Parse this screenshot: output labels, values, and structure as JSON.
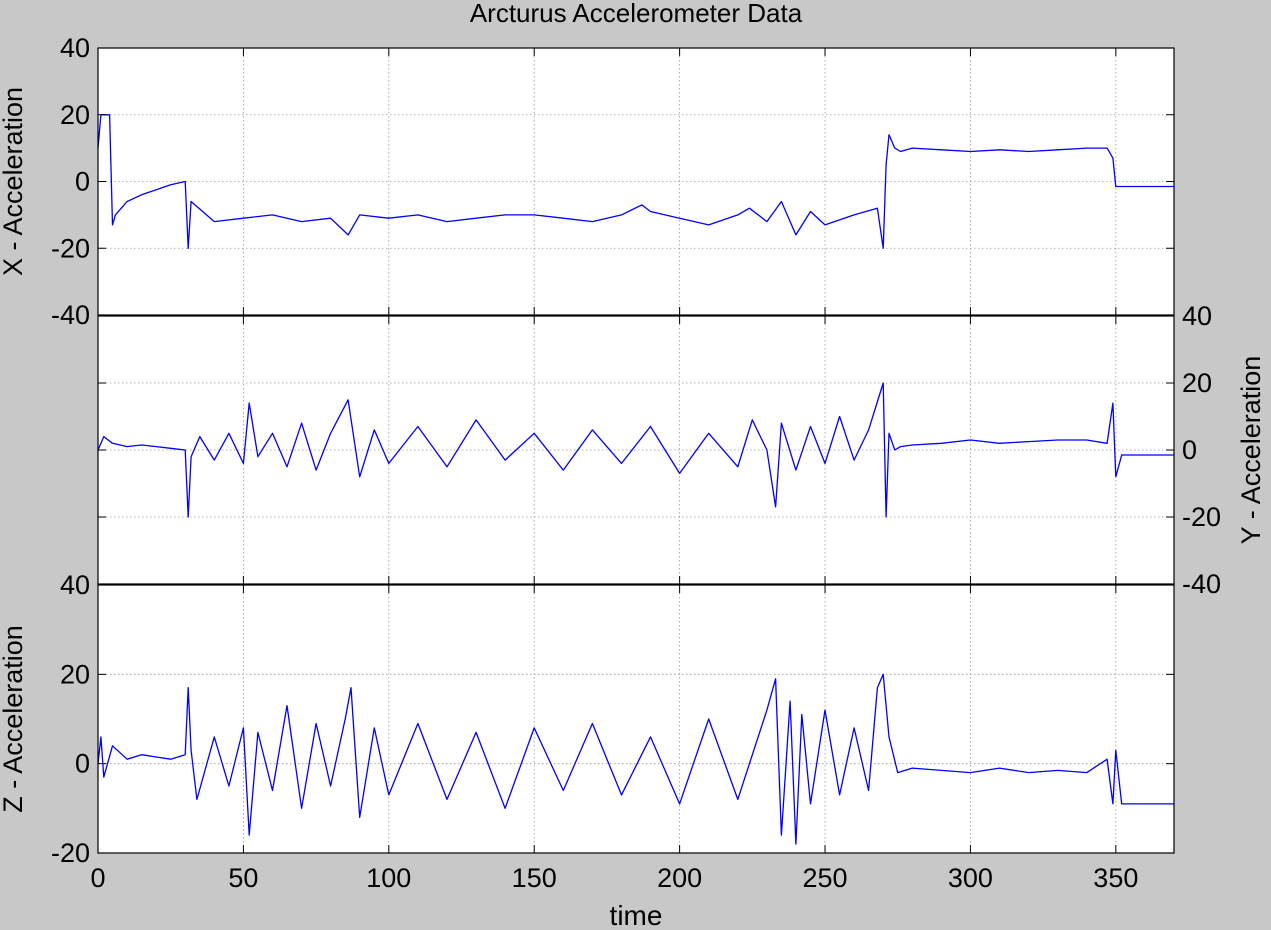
{
  "figure": {
    "title": "Arcturus Accelerometer Data",
    "xlabel": "time",
    "background": "#c8c8c8",
    "plot_background": "#ffffff",
    "line_color": "#0000ff",
    "grid_color": "#9a9a9a"
  },
  "chart_data": [
    {
      "type": "line",
      "title": "Arcturus Accelerometer Data",
      "xlabel": "",
      "ylabel": "X - Acceleration",
      "ylabel_side": "left",
      "xlim": [
        0,
        370
      ],
      "ylim": [
        -40,
        40
      ],
      "xticks": [
        0,
        50,
        100,
        150,
        200,
        250,
        300,
        350
      ],
      "yticks": [
        -40,
        -20,
        0,
        20,
        40
      ],
      "ytick_labels": [
        "-40",
        "-20",
        "0",
        "20",
        "40"
      ],
      "grid": true,
      "x": [
        0,
        1,
        4,
        5,
        6,
        8,
        10,
        15,
        20,
        25,
        30,
        31,
        32,
        40,
        50,
        60,
        70,
        80,
        86,
        90,
        100,
        110,
        120,
        130,
        140,
        150,
        160,
        170,
        180,
        187,
        190,
        200,
        210,
        220,
        224,
        230,
        235,
        240,
        245,
        250,
        260,
        268,
        270,
        271,
        272,
        274,
        276,
        280,
        290,
        300,
        310,
        320,
        330,
        340,
        347,
        349,
        350,
        352,
        360,
        370
      ],
      "series": [
        {
          "values": [
            10,
            20,
            20,
            -13,
            -10,
            -8,
            -6,
            -4,
            -2.5,
            -1,
            0,
            -20,
            -6,
            -12,
            -11,
            -10,
            -12,
            -11,
            -16,
            -10,
            -11,
            -10,
            -12,
            -11,
            -10,
            -10,
            -11,
            -12,
            -10,
            -7,
            -9,
            -11,
            -13,
            -10,
            -8,
            -12,
            -6,
            -16,
            -9,
            -13,
            -10,
            -8,
            -20,
            5,
            14,
            10,
            9,
            10,
            9.5,
            9,
            9.5,
            9,
            9.5,
            10,
            10,
            7,
            -1.5,
            -1.5,
            -1.5,
            -1.5
          ]
        }
      ]
    },
    {
      "type": "line",
      "xlabel": "",
      "ylabel": "Y - Acceleration",
      "ylabel_side": "right",
      "xlim": [
        0,
        370
      ],
      "ylim": [
        -40,
        40
      ],
      "xticks": [
        0,
        50,
        100,
        150,
        200,
        250,
        300,
        350
      ],
      "yticks": [
        -40,
        -20,
        0,
        20,
        40
      ],
      "ytick_labels": [
        "-40",
        "-20",
        "0",
        "20",
        "40"
      ],
      "grid": true,
      "x": [
        0,
        2,
        5,
        10,
        15,
        20,
        25,
        30,
        31,
        32,
        35,
        40,
        45,
        50,
        52,
        55,
        60,
        65,
        70,
        75,
        80,
        86,
        90,
        95,
        100,
        110,
        120,
        130,
        140,
        150,
        160,
        170,
        180,
        190,
        200,
        210,
        220,
        225,
        230,
        233,
        235,
        240,
        245,
        250,
        255,
        260,
        265,
        270,
        271,
        272,
        274,
        276,
        280,
        290,
        300,
        310,
        320,
        330,
        340,
        347,
        349,
        350,
        352,
        360,
        370
      ],
      "series": [
        {
          "values": [
            0,
            4,
            2,
            1,
            1.5,
            1,
            0.5,
            0,
            -20,
            -2,
            4,
            -3,
            5,
            -4,
            14,
            -2,
            5,
            -5,
            8,
            -6,
            5,
            15,
            -8,
            6,
            -4,
            7,
            -5,
            9,
            -3,
            5,
            -6,
            6,
            -4,
            7,
            -7,
            5,
            -5,
            9,
            0,
            -17,
            8,
            -6,
            7,
            -4,
            10,
            -3,
            6,
            20,
            -20,
            5,
            0,
            1,
            1.5,
            2,
            3,
            2,
            2.5,
            3,
            3,
            2,
            14,
            -8,
            -1.5,
            -1.5,
            -1.5
          ]
        }
      ]
    },
    {
      "type": "line",
      "xlabel": "time",
      "ylabel": "Z - Acceleration",
      "ylabel_side": "left",
      "xlim": [
        0,
        370
      ],
      "ylim": [
        -20,
        40
      ],
      "xticks": [
        0,
        50,
        100,
        150,
        200,
        250,
        300,
        350
      ],
      "xtick_labels": [
        "0",
        "50",
        "100",
        "150",
        "200",
        "250",
        "300",
        "350"
      ],
      "yticks": [
        -20,
        0,
        20,
        40
      ],
      "ytick_labels": [
        "-20",
        "0",
        "20",
        "40"
      ],
      "grid": true,
      "x": [
        0,
        1,
        2,
        5,
        10,
        15,
        20,
        25,
        30,
        31,
        32,
        34,
        40,
        45,
        50,
        52,
        55,
        60,
        65,
        70,
        75,
        80,
        85,
        87,
        90,
        95,
        100,
        110,
        120,
        130,
        140,
        150,
        160,
        170,
        180,
        190,
        200,
        210,
        220,
        230,
        233,
        235,
        238,
        240,
        242,
        245,
        250,
        255,
        260,
        265,
        268,
        270,
        272,
        275,
        280,
        290,
        300,
        310,
        320,
        330,
        340,
        347,
        349,
        350,
        352,
        360,
        370
      ],
      "series": [
        {
          "values": [
            0,
            6,
            -3,
            4,
            1,
            2,
            1.5,
            1,
            2,
            17,
            3,
            -8,
            6,
            -5,
            8,
            -16,
            7,
            -6,
            13,
            -10,
            9,
            -5,
            10,
            17,
            -12,
            8,
            -7,
            9,
            -8,
            7,
            -10,
            8,
            -6,
            9,
            -7,
            6,
            -9,
            10,
            -8,
            12,
            19,
            -16,
            14,
            -18,
            11,
            -9,
            12,
            -7,
            8,
            -6,
            17,
            20,
            6,
            -2,
            -1,
            -1.5,
            -2,
            -1,
            -2,
            -1.5,
            -2,
            1,
            -9,
            3,
            -9,
            -9,
            -9
          ]
        }
      ]
    }
  ]
}
